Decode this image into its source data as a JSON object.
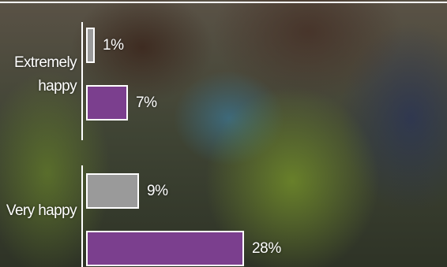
{
  "chart_data": {
    "type": "bar",
    "categories": [
      "Extremely happy",
      "Very happy"
    ],
    "series": [
      {
        "color": "#9a9a9a",
        "values": [
          1,
          9
        ],
        "value_labels": [
          "1%",
          "9%"
        ]
      },
      {
        "color": "#7b3f8e",
        "values": [
          7,
          28
        ],
        "value_labels": [
          "7%",
          "28%"
        ]
      }
    ]
  }
}
